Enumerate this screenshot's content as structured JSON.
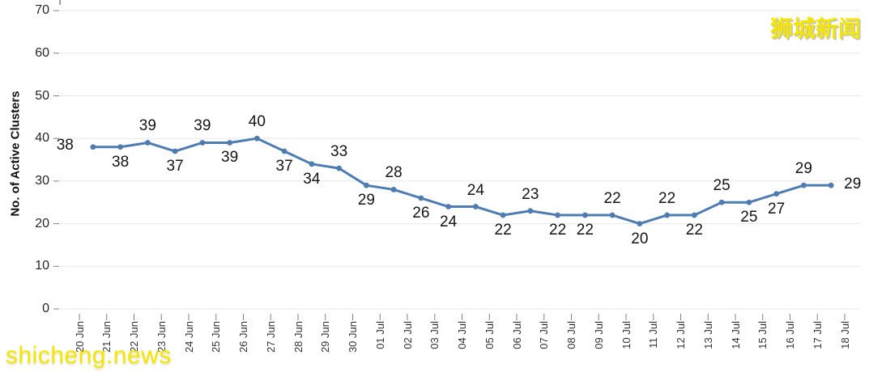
{
  "watermarks": {
    "top_right_text": "狮城新闻",
    "bottom_left_text": "shicheng.news",
    "color": "#F5E600"
  },
  "chart_data": {
    "type": "line",
    "title": "",
    "xlabel": "",
    "ylabel": "No. of Active Clusters",
    "x_tick_labels": [
      "20 Jun",
      "21 Jun",
      "22 Jun",
      "23 Jun",
      "24 Jun",
      "25 Jun",
      "26 Jun",
      "27 Jun",
      "28 Jun",
      "29 Jun",
      "30 Jun",
      "01 Jul",
      "02 Jul",
      "03 Jul",
      "04 Jul",
      "05 Jul",
      "06 Jul",
      "07 Jul",
      "08 Jul",
      "09 Jul",
      "10 Jul",
      "11 Jul",
      "12 Jul",
      "13 Jul",
      "14 Jul",
      "15 Jul",
      "16 Jul",
      "17 Jul",
      "18 Jul"
    ],
    "points_between_ticks": true,
    "values": [
      38,
      38,
      39,
      37,
      39,
      39,
      40,
      37,
      34,
      33,
      29,
      28,
      26,
      24,
      24,
      22,
      23,
      22,
      22,
      22,
      20,
      22,
      22,
      25,
      25,
      27,
      29,
      29
    ],
    "data_labels_shown": true,
    "label_placements": [
      "left",
      "below",
      "above",
      "below",
      "above",
      "below",
      "above",
      "below",
      "below",
      "above",
      "below",
      "above",
      "below",
      "below",
      "above",
      "below",
      "above",
      "below",
      "below",
      "above",
      "below",
      "above",
      "below",
      "above",
      "below",
      "below",
      "above",
      "right"
    ],
    "yticks": [
      0,
      10,
      20,
      30,
      40,
      50,
      60,
      70
    ],
    "ylim": [
      0,
      70
    ],
    "grid": "horizontal",
    "legend": "none",
    "line_color": "#4E7CB1",
    "marker": "circle",
    "marker_color": "#4E7CB1",
    "gridline_color": "#E8E8E8",
    "tick_color": "#808080"
  }
}
